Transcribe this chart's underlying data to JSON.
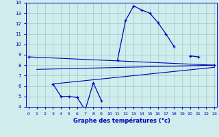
{
  "xlabel": "Graphe des températures (°c)",
  "x_hours": [
    0,
    1,
    2,
    3,
    4,
    5,
    6,
    7,
    8,
    9,
    10,
    11,
    12,
    13,
    14,
    15,
    16,
    17,
    18,
    19,
    20,
    21,
    22,
    23
  ],
  "temp_main": [
    8.8,
    null,
    null,
    6.2,
    5.0,
    5.0,
    4.9,
    3.7,
    6.3,
    4.6,
    null,
    8.5,
    12.3,
    13.7,
    13.3,
    13.0,
    12.1,
    11.0,
    9.8,
    null,
    8.9,
    8.8,
    null,
    8.0
  ],
  "trend1_x": [
    0,
    23
  ],
  "trend1_y": [
    8.8,
    8.0
  ],
  "trend2_x": [
    1,
    23
  ],
  "trend2_y": [
    7.6,
    8.0
  ],
  "trend3_x": [
    3,
    23
  ],
  "trend3_y": [
    6.2,
    7.8
  ],
  "bg_color": "#d0ecec",
  "line_color": "#0000bb",
  "grid_color": "#99cccc",
  "ymin": 4,
  "ymax": 14,
  "xmin": 0,
  "xmax": 23
}
